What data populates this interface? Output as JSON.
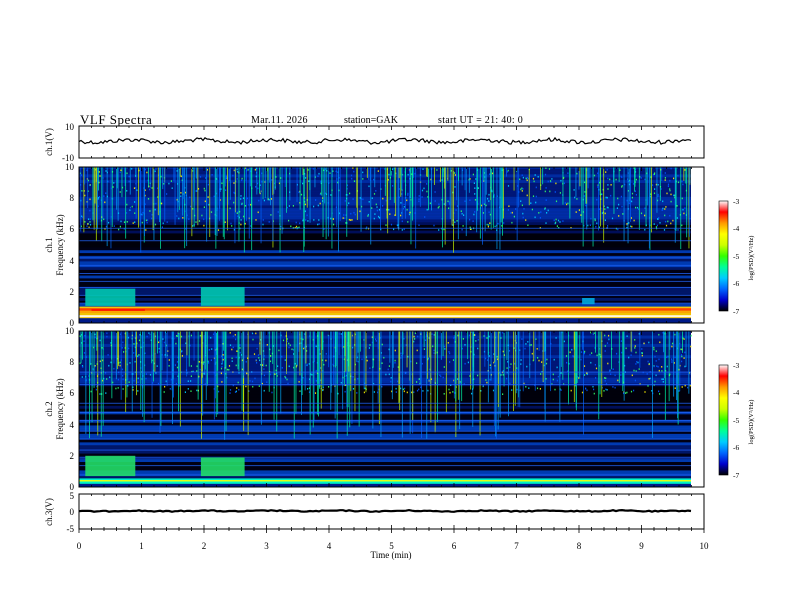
{
  "header": {
    "title": "VLF  Spectra",
    "date": "Mar.11. 2026",
    "station": "station=GAK",
    "start": "start  UT =   21: 40: 0"
  },
  "chart_data": {
    "type": "heatmap",
    "xlabel": "Time  (min)",
    "xlim": [
      0,
      10
    ],
    "x_ticks": [
      "0",
      "1",
      "2",
      "3",
      "4",
      "5",
      "6",
      "7",
      "8",
      "9",
      "10"
    ],
    "panels": [
      {
        "id": "ch1-waveform",
        "type": "line",
        "ylabel": "ch.1(V)",
        "ylim": [
          -10,
          10
        ],
        "y_ticks": [
          "10",
          "-10"
        ]
      },
      {
        "id": "ch1-spectrogram",
        "type": "heatmap",
        "ylabel_top": "ch.1",
        "ylabel": "Frequency  (kHz)",
        "ylim": [
          0,
          10
        ],
        "y_ticks": [
          "0",
          "2",
          "4",
          "6",
          "8",
          "10"
        ]
      },
      {
        "id": "ch2-spectrogram",
        "type": "heatmap",
        "ylabel_top": "ch.2",
        "ylabel": "Frequency  (kHz)",
        "ylim": [
          0,
          10
        ],
        "y_ticks": [
          "0",
          "2",
          "4",
          "6",
          "8",
          "10"
        ]
      },
      {
        "id": "ch3-waveform",
        "type": "line",
        "ylabel": "ch.3(V)",
        "ylim": [
          -5,
          5
        ],
        "y_ticks": [
          "5",
          "0",
          "-5"
        ]
      }
    ],
    "colorbar": {
      "label": "log(PSD)(V²/Hz)",
      "range": [
        -7,
        -3
      ],
      "ticks": [
        "-3",
        "-4",
        "-5",
        "-6",
        "-7"
      ],
      "colors": [
        "#000000",
        "#0000cc",
        "#0066ff",
        "#00ccff",
        "#00ff99",
        "#33ff00",
        "#ccff00",
        "#ffff00",
        "#ff9900",
        "#ff0000",
        "#ffffff"
      ]
    }
  }
}
